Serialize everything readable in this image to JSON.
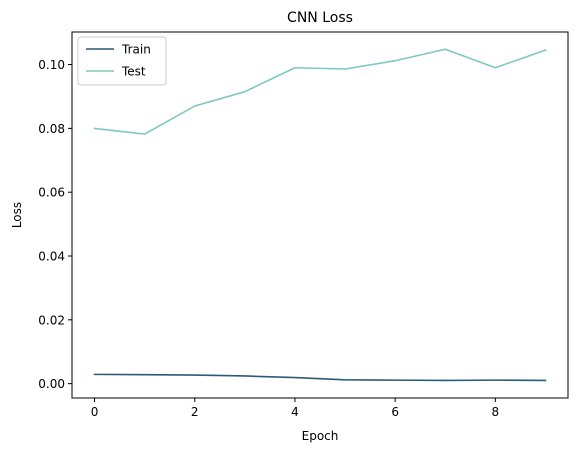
{
  "chart_data": {
    "type": "line",
    "title": "CNN Loss",
    "xlabel": "Epoch",
    "ylabel": "Loss",
    "x": [
      0,
      1,
      2,
      3,
      4,
      5,
      6,
      7,
      8,
      9
    ],
    "xlim": [
      -0.45,
      9.45
    ],
    "ylim": [
      -0.0045,
      0.1102
    ],
    "xticks": [
      0,
      2,
      4,
      6,
      8
    ],
    "xtick_labels": [
      "0",
      "2",
      "4",
      "6",
      "8"
    ],
    "yticks": [
      0.0,
      0.02,
      0.04,
      0.06,
      0.08,
      0.1
    ],
    "ytick_labels": [
      "0.00",
      "0.02",
      "0.04",
      "0.06",
      "0.08",
      "0.10"
    ],
    "grid": false,
    "legend_position": "top-left",
    "series": [
      {
        "name": "Train",
        "color": "#2a5c73",
        "values": [
          0.0029,
          0.0028,
          0.0027,
          0.0024,
          0.0019,
          0.0012,
          0.0011,
          0.001,
          0.0011,
          0.001
        ]
      },
      {
        "name": "Test",
        "color": "#7dc9c0",
        "values": [
          0.08,
          0.0782,
          0.087,
          0.0915,
          0.099,
          0.0986,
          0.1012,
          0.1048,
          0.099,
          0.1045
        ]
      }
    ]
  }
}
